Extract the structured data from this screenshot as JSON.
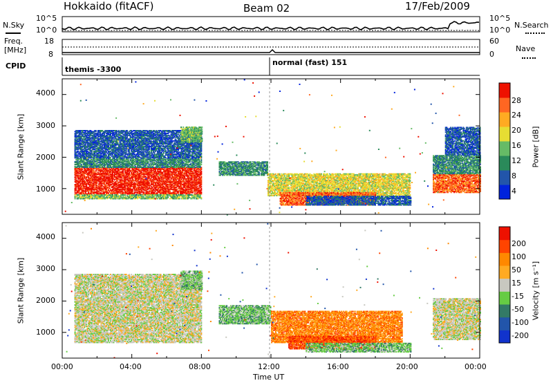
{
  "header": {
    "station": "Hokkaido (fitACF)",
    "beam": "Beam 02",
    "date": "17/Feb/2009"
  },
  "noise_panel": {
    "left_label": "N.Sky",
    "right_label": "N.Search",
    "left_ticks": [
      "10^5",
      "10^0"
    ],
    "right_ticks": [
      "10^5",
      "10^0"
    ]
  },
  "freq_panel": {
    "left_label_1": "Freq.",
    "left_label_2": "[MHz]",
    "left_ticks": [
      "18",
      "8"
    ],
    "right_label": "Nave",
    "right_ticks": [
      "60",
      "0"
    ]
  },
  "cpid_panel": {
    "label": "CPID",
    "modes": [
      "themis -3300",
      "normal (fast) 151"
    ]
  },
  "chart_data": [
    {
      "type": "heatmap",
      "name": "power",
      "ylabel": "Slant Range [km]",
      "yticks": [
        "4000",
        "3000",
        "2000",
        "1000"
      ],
      "colorbar_label": "Power [dB]",
      "colorbar_ticks": [
        "28",
        "24",
        "20",
        "16",
        "12",
        "8",
        "4"
      ],
      "colors": [
        "#0022dd",
        "#2255aa",
        "#2a8a5a",
        "#66bb66",
        "#e6dd33",
        "#ffaa22",
        "#ff6622",
        "#ee1100"
      ],
      "x_range_hours": [
        0,
        24
      ],
      "y_range_km": [
        180,
        4500
      ],
      "regions": [
        {
          "t": [
            0.7,
            8.0
          ],
          "r": [
            850,
            1700
          ],
          "level": 7
        },
        {
          "t": [
            0.7,
            8.0
          ],
          "r": [
            700,
            850
          ],
          "level": 3
        },
        {
          "t": [
            0.7,
            8.0
          ],
          "r": [
            1700,
            2000
          ],
          "level": 2
        },
        {
          "t": [
            0.7,
            8.0
          ],
          "r": [
            2000,
            2900
          ],
          "level": 1
        },
        {
          "t": [
            6.8,
            8.0
          ],
          "r": [
            2500,
            3000
          ],
          "level": 3
        },
        {
          "t": [
            9.0,
            11.8
          ],
          "r": [
            1450,
            1900
          ],
          "level": 2
        },
        {
          "t": [
            11.8,
            20.0
          ],
          "r": [
            800,
            1500
          ],
          "level": 4
        },
        {
          "t": [
            12.5,
            18.0
          ],
          "r": [
            500,
            900
          ],
          "level": 6
        },
        {
          "t": [
            14.0,
            20.0
          ],
          "r": [
            500,
            800
          ],
          "level": 1
        },
        {
          "t": [
            21.3,
            24.0
          ],
          "r": [
            900,
            1500
          ],
          "level": 6
        },
        {
          "t": [
            21.3,
            24.0
          ],
          "r": [
            1500,
            2100
          ],
          "level": 2
        },
        {
          "t": [
            22.0,
            24.0
          ],
          "r": [
            2100,
            3000
          ],
          "level": 1
        }
      ]
    },
    {
      "type": "heatmap",
      "name": "velocity",
      "ylabel": "Slant Range [km]",
      "yticks": [
        "4000",
        "3000",
        "2000",
        "1000"
      ],
      "colorbar_label": "Velocity [m s⁻¹]",
      "colorbar_ticks": [
        "200",
        "100",
        "50",
        "15",
        "-15",
        "-50",
        "-100",
        "-200"
      ],
      "colors": [
        "#1133cc",
        "#2255aa",
        "#337a66",
        "#66cc44",
        "#c8c8c0",
        "#ffaa22",
        "#ff8800",
        "#ff4400",
        "#ee1100"
      ],
      "x_range_hours": [
        0,
        24
      ],
      "y_range_km": [
        180,
        4500
      ],
      "regions": [
        {
          "t": [
            0.7,
            8.0
          ],
          "r": [
            700,
            2000
          ],
          "level": 4
        },
        {
          "t": [
            0.7,
            8.0
          ],
          "r": [
            2000,
            2900
          ],
          "level": 4
        },
        {
          "t": [
            6.8,
            8.0
          ],
          "r": [
            2400,
            3000
          ],
          "level": 3
        },
        {
          "t": [
            9.0,
            12.0
          ],
          "r": [
            1300,
            1900
          ],
          "level": 3
        },
        {
          "t": [
            12.0,
            19.5
          ],
          "r": [
            700,
            1700
          ],
          "level": 6
        },
        {
          "t": [
            13.0,
            18.0
          ],
          "r": [
            500,
            900
          ],
          "level": 7
        },
        {
          "t": [
            14.0,
            20.0
          ],
          "r": [
            400,
            700
          ],
          "level": 3
        },
        {
          "t": [
            21.3,
            24.0
          ],
          "r": [
            800,
            2100
          ],
          "level": 4
        }
      ]
    }
  ],
  "xaxis": {
    "ticks": [
      "00:00",
      "04:00",
      "08:00",
      "12:00",
      "16:00",
      "20:00",
      "00:00"
    ],
    "label": "Time UT"
  }
}
